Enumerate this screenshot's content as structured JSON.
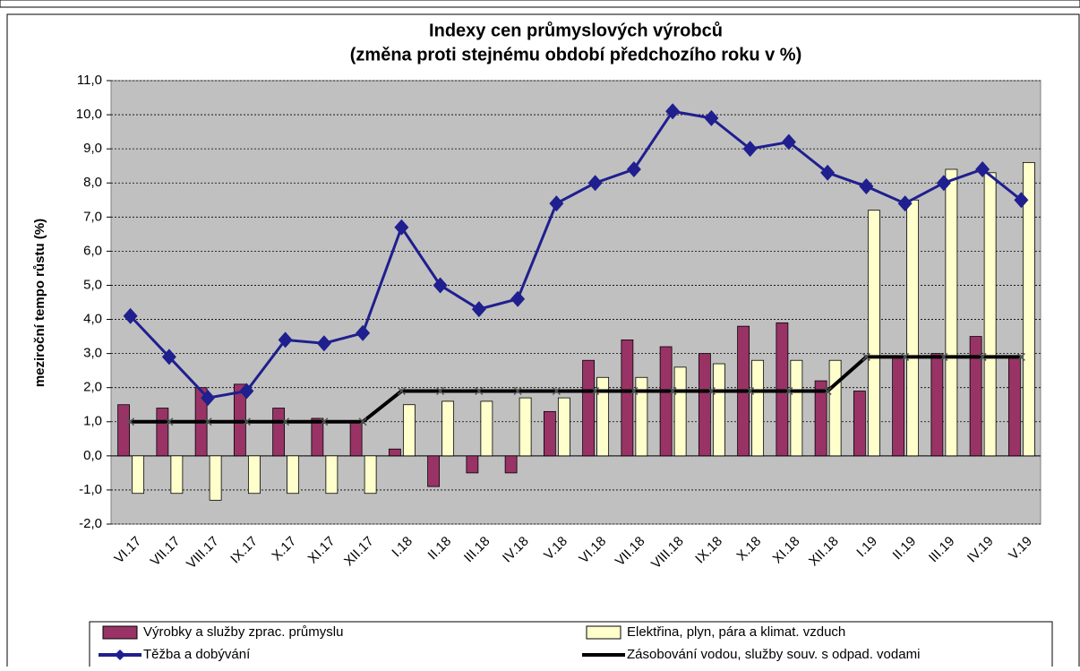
{
  "chart_data": {
    "type": "bar-line",
    "title": "Indexy cen průmyslových výrobců",
    "subtitle": "(změna proti stejnému období předchozího roku v %)",
    "y_label": "meziroční tempo růstu (%)",
    "categories": [
      "VI.17",
      "VII.17",
      "VIII.17",
      "IX.17",
      "X.17",
      "XI.17",
      "XII.17",
      "I.18",
      "II.18",
      "III.18",
      "IV.18",
      "V.18",
      "VI.18",
      "VII.18",
      "VIII.18",
      "IX.18",
      "X.18",
      "XI.18",
      "XII.18",
      "I.19",
      "II.19",
      "III.19",
      "IV.19",
      "V.19"
    ],
    "series": [
      {
        "name": "Výrobky a služby zprac. průmyslu",
        "kind": "bar",
        "color": "#993366",
        "values": [
          1.5,
          1.4,
          2.0,
          2.1,
          1.4,
          1.1,
          1.0,
          0.2,
          -0.9,
          -0.5,
          -0.5,
          1.3,
          2.8,
          3.4,
          3.2,
          3.0,
          3.8,
          3.9,
          2.2,
          1.9,
          2.9,
          3.0,
          3.5,
          2.9
        ]
      },
      {
        "name": "Elektřina, plyn, pára a klimat. vzduch",
        "kind": "bar",
        "color": "#ffffcc",
        "values": [
          -1.1,
          -1.1,
          -1.3,
          -1.1,
          -1.1,
          -1.1,
          -1.1,
          1.5,
          1.6,
          1.6,
          1.7,
          1.7,
          2.3,
          2.3,
          2.6,
          2.7,
          2.8,
          2.8,
          2.8,
          7.2,
          7.5,
          8.4,
          8.3,
          8.6
        ]
      },
      {
        "name": "Těžba a dobývání",
        "kind": "line",
        "color": "#1f1f8f",
        "values": [
          4.1,
          2.9,
          1.7,
          1.9,
          3.4,
          3.3,
          3.6,
          6.7,
          5.0,
          4.3,
          4.6,
          7.4,
          8.0,
          8.4,
          10.1,
          9.9,
          9.0,
          9.2,
          8.3,
          7.9,
          7.4,
          8.0,
          8.4,
          7.5
        ]
      },
      {
        "name": "Zásobování vodou, služby souv. s odpad. vodami",
        "kind": "line",
        "color": "#000000",
        "values": [
          1.0,
          1.0,
          1.0,
          1.0,
          1.0,
          1.0,
          1.0,
          1.9,
          1.9,
          1.9,
          1.9,
          1.9,
          1.9,
          1.9,
          1.9,
          1.9,
          1.9,
          1.9,
          1.9,
          2.9,
          2.9,
          2.9,
          2.9,
          2.9
        ]
      }
    ],
    "ylim": [
      -2,
      11
    ],
    "yticks": [
      {
        "value": -2,
        "label": "-2,0"
      },
      {
        "value": -1,
        "label": "-1,0"
      },
      {
        "value": 0,
        "label": "0,0"
      },
      {
        "value": 1,
        "label": "1,0"
      },
      {
        "value": 2,
        "label": "2,0"
      },
      {
        "value": 3,
        "label": "3,0"
      },
      {
        "value": 4,
        "label": "4,0"
      },
      {
        "value": 5,
        "label": "5,0"
      },
      {
        "value": 6,
        "label": "6,0"
      },
      {
        "value": 7,
        "label": "7,0"
      },
      {
        "value": 8,
        "label": "8,0"
      },
      {
        "value": 9,
        "label": "9,0"
      },
      {
        "value": 10,
        "label": "10,0"
      },
      {
        "value": 11,
        "label": "11,0"
      }
    ],
    "grid": true,
    "plot_background": "#c0c0c0",
    "legend": "bottom"
  }
}
